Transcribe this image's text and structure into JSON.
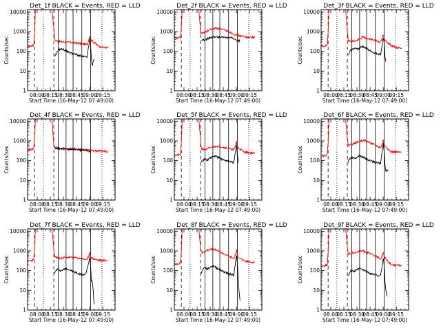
{
  "chart_data": {
    "type": "line",
    "xlabel": "Start Time (16-May-12 07:49:00)",
    "ylabel": "Counts/sec",
    "x_tick_labels": [
      "08:00",
      "08:15",
      "08:30",
      "08:45",
      "09:00",
      "09:15"
    ],
    "x_ticks_min": [
      11,
      26,
      41,
      56,
      71,
      86
    ],
    "x_range_min": [
      0,
      100
    ],
    "ylim": [
      1,
      13000
    ],
    "y_scale": "log",
    "y_tick_labels": [
      "1",
      "10",
      "100",
      "1000",
      "10000"
    ],
    "y_ticks": [
      1,
      10,
      100,
      1000,
      10000
    ],
    "series_colors": {
      "events": "#000000",
      "lld": "#ff0000"
    },
    "dashed_lines_min": [
      8,
      30
    ],
    "dotted_lines_min": [
      18,
      85
    ],
    "solid_lines_min": [
      35,
      44,
      52,
      62,
      72
    ],
    "panels": [
      {
        "title": "Det_1f BLACK = Events, RED = LLD",
        "lld": [
          [
            0,
            170
          ],
          [
            7,
            200
          ],
          [
            8,
            800
          ],
          [
            9,
            13000
          ],
          [
            28,
            13000
          ],
          [
            30,
            1500
          ],
          [
            31,
            400
          ],
          [
            34,
            330
          ],
          [
            40,
            300
          ],
          [
            50,
            280
          ],
          [
            60,
            250
          ],
          [
            68,
            220
          ],
          [
            70,
            400
          ],
          [
            71,
            600
          ],
          [
            72,
            400
          ],
          [
            80,
            200
          ],
          [
            85,
            160
          ],
          [
            92,
            150
          ]
        ],
        "events": [
          [
            31,
            50
          ],
          [
            33,
            80
          ],
          [
            35,
            120
          ],
          [
            40,
            130
          ],
          [
            45,
            100
          ],
          [
            50,
            80
          ],
          [
            55,
            70
          ],
          [
            62,
            55
          ],
          [
            68,
            50
          ],
          [
            70,
            200
          ],
          [
            71,
            400
          ],
          [
            72,
            200
          ],
          [
            73,
            40
          ],
          [
            74,
            20
          ],
          [
            76,
            40
          ]
        ]
      },
      {
        "title": "Det_2f BLACK = Events, RED = LLD",
        "lld": [
          [
            0,
            450
          ],
          [
            7,
            500
          ],
          [
            8,
            1500
          ],
          [
            9,
            13000
          ],
          [
            28,
            13000
          ],
          [
            30,
            900
          ],
          [
            32,
            800
          ],
          [
            36,
            1000
          ],
          [
            42,
            1300
          ],
          [
            47,
            1500
          ],
          [
            52,
            1400
          ],
          [
            60,
            1100
          ],
          [
            70,
            700
          ],
          [
            72,
            650
          ],
          [
            80,
            550
          ],
          [
            92,
            500
          ]
        ],
        "events": [
          [
            31,
            350
          ],
          [
            36,
            400
          ],
          [
            42,
            500
          ],
          [
            50,
            550
          ],
          [
            60,
            500
          ],
          [
            70,
            450
          ],
          [
            72,
            350
          ],
          [
            75,
            330
          ]
        ]
      },
      {
        "title": "Det_3f BLACK = Events, RED = LLD",
        "lld": [
          [
            0,
            170
          ],
          [
            7,
            200
          ],
          [
            8,
            800
          ],
          [
            9,
            13000
          ],
          [
            28,
            13000
          ],
          [
            30,
            1200
          ],
          [
            31,
            350
          ],
          [
            38,
            330
          ],
          [
            44,
            400
          ],
          [
            48,
            550
          ],
          [
            52,
            450
          ],
          [
            60,
            380
          ],
          [
            68,
            300
          ],
          [
            70,
            500
          ],
          [
            71,
            700
          ],
          [
            72,
            400
          ],
          [
            80,
            200
          ],
          [
            85,
            160
          ],
          [
            92,
            150
          ]
        ],
        "events": [
          [
            31,
            60
          ],
          [
            34,
            120
          ],
          [
            38,
            140
          ],
          [
            42,
            130
          ],
          [
            46,
            180
          ],
          [
            50,
            160
          ],
          [
            55,
            110
          ],
          [
            62,
            80
          ],
          [
            68,
            70
          ],
          [
            70,
            250
          ],
          [
            71,
            500
          ],
          [
            72,
            250
          ],
          [
            73,
            50
          ],
          [
            74,
            30
          ]
        ]
      },
      {
        "title": "Det_4f BLACK = Events, RED = LLD",
        "lld": [
          [
            0,
            350
          ],
          [
            7,
            400
          ],
          [
            8,
            1500
          ],
          [
            9,
            13000
          ],
          [
            28,
            13000
          ],
          [
            30,
            600
          ],
          [
            31,
            450
          ],
          [
            38,
            420
          ],
          [
            46,
            400
          ],
          [
            56,
            380
          ],
          [
            66,
            360
          ],
          [
            72,
            330
          ],
          [
            80,
            310
          ],
          [
            92,
            300
          ]
        ],
        "events": [
          [
            31,
            450
          ],
          [
            38,
            400
          ],
          [
            46,
            380
          ],
          [
            56,
            360
          ],
          [
            66,
            340
          ],
          [
            72,
            300
          ]
        ]
      },
      {
        "title": "Det_5f BLACK = Events, RED = LLD",
        "lld": [
          [
            0,
            180
          ],
          [
            7,
            200
          ],
          [
            8,
            800
          ],
          [
            9,
            13000
          ],
          [
            28,
            13000
          ],
          [
            30,
            1000
          ],
          [
            31,
            400
          ],
          [
            36,
            380
          ],
          [
            42,
            450
          ],
          [
            48,
            550
          ],
          [
            54,
            500
          ],
          [
            62,
            420
          ],
          [
            68,
            350
          ],
          [
            70,
            600
          ],
          [
            71,
            1000
          ],
          [
            72,
            500
          ],
          [
            80,
            270
          ],
          [
            92,
            240
          ]
        ],
        "events": [
          [
            31,
            90
          ],
          [
            34,
            120
          ],
          [
            38,
            110
          ],
          [
            44,
            170
          ],
          [
            48,
            160
          ],
          [
            54,
            120
          ],
          [
            62,
            90
          ],
          [
            68,
            80
          ],
          [
            70,
            300
          ],
          [
            71,
            600
          ],
          [
            72,
            250
          ],
          [
            73,
            80
          ]
        ]
      },
      {
        "title": "Det_6f BLACK = Events, RED = LLD",
        "lld": [
          [
            0,
            170
          ],
          [
            7,
            200
          ],
          [
            8,
            800
          ],
          [
            9,
            13000
          ],
          [
            28,
            13000
          ],
          [
            30,
            1300
          ],
          [
            31,
            600
          ],
          [
            36,
            700
          ],
          [
            42,
            900
          ],
          [
            48,
            1100
          ],
          [
            54,
            900
          ],
          [
            62,
            600
          ],
          [
            68,
            450
          ],
          [
            70,
            700
          ],
          [
            71,
            1100
          ],
          [
            72,
            600
          ],
          [
            80,
            280
          ],
          [
            92,
            260
          ]
        ],
        "events": [
          [
            31,
            90
          ],
          [
            34,
            150
          ],
          [
            38,
            130
          ],
          [
            44,
            180
          ],
          [
            48,
            150
          ],
          [
            54,
            110
          ],
          [
            62,
            80
          ],
          [
            68,
            75
          ],
          [
            70,
            350
          ],
          [
            71,
            700
          ],
          [
            72,
            300
          ],
          [
            73,
            60
          ],
          [
            74,
            30
          ],
          [
            77,
            35
          ]
        ]
      },
      {
        "title": "Det_7f BLACK = Events, RED = LLD",
        "lld": [
          [
            0,
            300
          ],
          [
            7,
            350
          ],
          [
            8,
            1200
          ],
          [
            9,
            13000
          ],
          [
            28,
            13000
          ],
          [
            30,
            1000
          ],
          [
            31,
            500
          ],
          [
            38,
            420
          ],
          [
            46,
            480
          ],
          [
            54,
            450
          ],
          [
            62,
            400
          ],
          [
            68,
            350
          ],
          [
            70,
            600
          ],
          [
            71,
            900
          ],
          [
            72,
            450
          ],
          [
            80,
            340
          ],
          [
            92,
            320
          ]
        ],
        "events": [
          [
            31,
            80
          ],
          [
            34,
            120
          ],
          [
            38,
            100
          ],
          [
            44,
            130
          ],
          [
            50,
            100
          ],
          [
            58,
            70
          ],
          [
            66,
            60
          ],
          [
            70,
            250
          ],
          [
            71,
            500
          ],
          [
            72,
            200
          ],
          [
            73,
            30
          ],
          [
            74,
            30
          ],
          [
            75,
            10
          ],
          [
            76,
            2
          ]
        ]
      },
      {
        "title": "Det_8f BLACK = Events, RED = LLD",
        "lld": [
          [
            0,
            200
          ],
          [
            7,
            250
          ],
          [
            8,
            900
          ],
          [
            9,
            13000
          ],
          [
            28,
            13000
          ],
          [
            30,
            1400
          ],
          [
            31,
            800
          ],
          [
            36,
            1000
          ],
          [
            42,
            1300
          ],
          [
            48,
            1100
          ],
          [
            54,
            800
          ],
          [
            62,
            550
          ],
          [
            68,
            400
          ],
          [
            70,
            700
          ],
          [
            71,
            1100
          ],
          [
            72,
            550
          ],
          [
            80,
            300
          ],
          [
            92,
            260
          ]
        ],
        "events": [
          [
            31,
            80
          ],
          [
            34,
            150
          ],
          [
            38,
            120
          ],
          [
            44,
            180
          ],
          [
            48,
            140
          ],
          [
            54,
            100
          ],
          [
            62,
            70
          ],
          [
            68,
            60
          ],
          [
            70,
            300
          ],
          [
            71,
            600
          ],
          [
            72,
            250
          ],
          [
            73,
            40
          ],
          [
            74,
            8
          ],
          [
            75,
            3
          ]
        ]
      },
      {
        "title": "Det_9f BLACK = Events, RED = LLD",
        "lld": [
          [
            0,
            160
          ],
          [
            7,
            200
          ],
          [
            8,
            800
          ],
          [
            9,
            13000
          ],
          [
            28,
            13000
          ],
          [
            30,
            1500
          ],
          [
            31,
            700
          ],
          [
            36,
            800
          ],
          [
            42,
            900
          ],
          [
            48,
            1000
          ],
          [
            54,
            800
          ],
          [
            62,
            550
          ],
          [
            68,
            400
          ],
          [
            70,
            600
          ],
          [
            71,
            900
          ],
          [
            72,
            500
          ],
          [
            80,
            200
          ],
          [
            92,
            180
          ]
        ],
        "events": [
          [
            31,
            60
          ],
          [
            34,
            100
          ],
          [
            38,
            90
          ],
          [
            44,
            130
          ],
          [
            48,
            110
          ],
          [
            54,
            80
          ],
          [
            62,
            60
          ],
          [
            68,
            55
          ],
          [
            70,
            200
          ],
          [
            71,
            400
          ],
          [
            72,
            200
          ],
          [
            73,
            30
          ],
          [
            74,
            10
          ],
          [
            75,
            5
          ]
        ]
      }
    ]
  }
}
